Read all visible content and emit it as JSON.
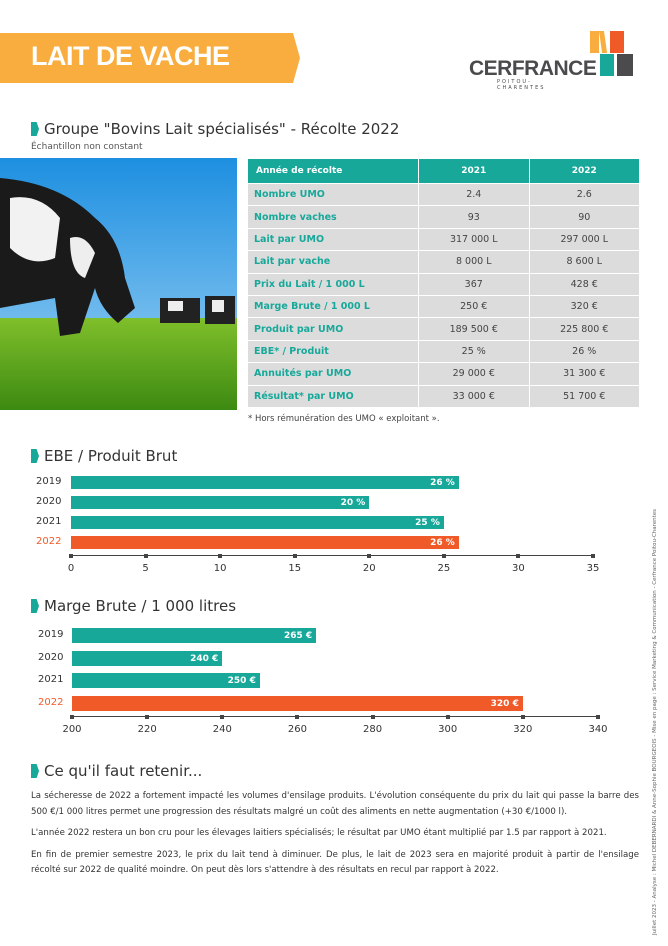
{
  "header": {
    "title": "LAIT DE VACHE",
    "logo": "CERFRANCE",
    "logo_sub": "POITOU-CHARENTES",
    "colors": {
      "orange": "#f9ad3f",
      "teal": "#17a89a",
      "red": "#f05a28",
      "grey": "#4b4b4d"
    }
  },
  "section1": {
    "title": "Groupe \"Bovins Lait spécialisés\" - Récolte 2022",
    "subtitle": "Échantillon non constant"
  },
  "table": {
    "headers": [
      "Année de récolte",
      "2021",
      "2022"
    ],
    "rows": [
      [
        "Nombre UMO",
        "2.4",
        "2.6"
      ],
      [
        "Nombre vaches",
        "93",
        "90"
      ],
      [
        "Lait par UMO",
        "317 000 L",
        "297 000 L"
      ],
      [
        "Lait par vache",
        "8 000 L",
        "8 600 L"
      ],
      [
        "Prix du Lait / 1 000 L",
        "367",
        "428 €"
      ],
      [
        "Marge Brute / 1 000 L",
        "250 €",
        "320 €"
      ],
      [
        "Produit par UMO",
        "189 500 €",
        "225 800 €"
      ],
      [
        "EBE* / Produit",
        "25 %",
        "26 %"
      ],
      [
        "Annuités par UMO",
        "29 000 €",
        "31 300 €"
      ],
      [
        "Résultat* par UMO",
        "33 000 €",
        "51 700 €"
      ]
    ],
    "footnote": "* Hors rémunération des UMO « exploitant »."
  },
  "chart_data": [
    {
      "type": "bar",
      "orientation": "horizontal",
      "title": "EBE / Produit Brut",
      "categories": [
        "2019",
        "2020",
        "2021",
        "2022"
      ],
      "values": [
        26,
        20,
        25,
        26
      ],
      "labels": [
        "26 %",
        "20 %",
        "25 %",
        "26 %"
      ],
      "xlim": [
        0,
        35
      ],
      "xticks": [
        "0",
        "5",
        "10",
        "15",
        "20",
        "25",
        "30",
        "35"
      ],
      "colors": [
        "#17a89a",
        "#17a89a",
        "#17a89a",
        "#f05a28"
      ]
    },
    {
      "type": "bar",
      "orientation": "horizontal",
      "title": "Marge Brute / 1 000 litres",
      "categories": [
        "2019",
        "2020",
        "2021",
        "2022"
      ],
      "values": [
        265,
        240,
        250,
        320
      ],
      "labels": [
        "265 €",
        "240 €",
        "250 €",
        "320 €"
      ],
      "xlim": [
        200,
        340
      ],
      "xticks": [
        "200",
        "220",
        "240",
        "260",
        "280",
        "300",
        "320",
        "340"
      ],
      "colors": [
        "#17a89a",
        "#17a89a",
        "#17a89a",
        "#f05a28"
      ]
    }
  ],
  "summary": {
    "title": "Ce qu'il faut retenir...",
    "paragraphs": [
      "La sécheresse de 2022 a fortement impacté les volumes d'ensilage produits. L'évolution conséquente du prix du lait qui passe la barre des 500 €/1 000 litres permet une progression des résultats malgré un coût des aliments en nette augmentation (+30 €/1000 l).",
      "L'année 2022 restera un bon cru pour les élevages laitiers spécialisés; le résultat par UMO étant multiplié par 1.5 par rapport à 2021.",
      "En fin de premier semestre 2023, le prix du lait tend à diminuer. De plus, le lait de 2023 sera en majorité produit à partir de l'ensilage récolté sur 2022 de qualité moindre. On peut dès lors s'attendre à des résultats en recul par rapport à 2022."
    ]
  },
  "side_credit": "Juillet 2023 - Analyse : Michel DEBERNARDI & Anne-Sophie BOURGEOIS - Mise en page : Service Marketing & Communication - Cerfrance Poitou-Charentes"
}
